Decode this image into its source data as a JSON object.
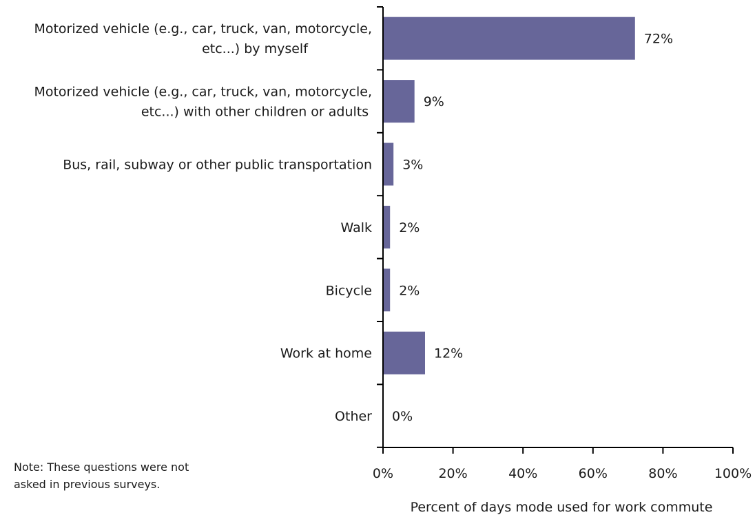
{
  "chart_data": {
    "type": "bar",
    "orientation": "horizontal",
    "categories": [
      [
        "Motorized vehicle (e.g., car, truck, van, motorcycle,",
        "etc...) by myself"
      ],
      [
        "Motorized vehicle (e.g., car, truck, van, motorcycle,",
        "etc...) with other children or adults"
      ],
      [
        "Bus, rail, subway or other public transportation"
      ],
      [
        "Walk"
      ],
      [
        "Bicycle"
      ],
      [
        "Work at home"
      ],
      [
        "Other"
      ]
    ],
    "values": [
      72,
      9,
      3,
      2,
      2,
      12,
      0
    ],
    "value_labels": [
      "72%",
      "9%",
      "3%",
      "2%",
      "2%",
      "12%",
      "0%"
    ],
    "xlabel": "Percent of days mode used for work commute",
    "xlim": [
      0,
      100
    ],
    "xticks": [
      0,
      20,
      40,
      60,
      80,
      100
    ],
    "xtick_labels": [
      "0%",
      "20%",
      "40%",
      "60%",
      "80%",
      "100%"
    ],
    "bar_color": "#676699",
    "grid": false,
    "legend": "none"
  },
  "note": {
    "line1": "Note: These questions were not",
    "line2": "asked in previous surveys."
  }
}
